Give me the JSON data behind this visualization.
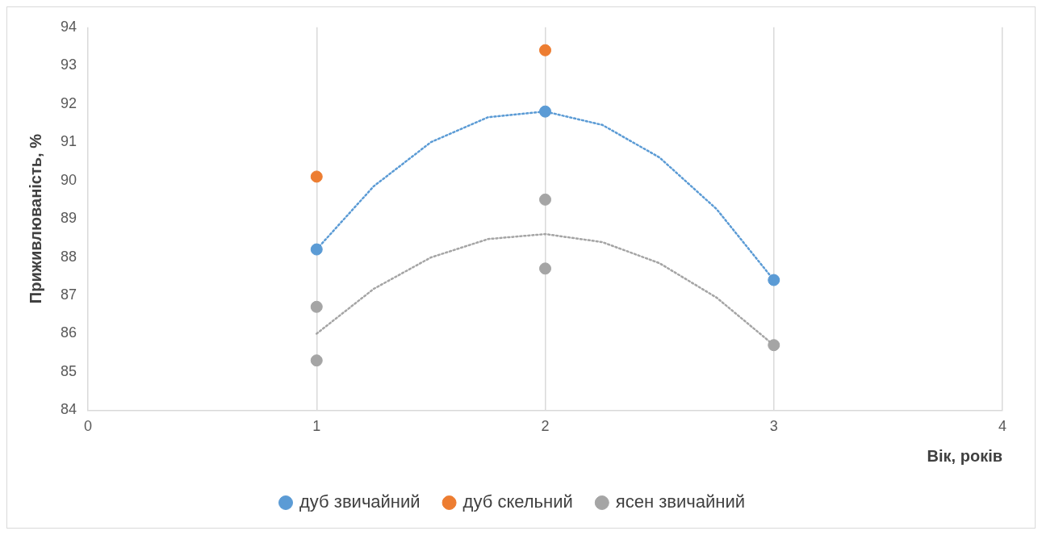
{
  "chart_data": {
    "type": "scatter",
    "xlabel": "Вік, років",
    "ylabel": "Приживлюваність, %",
    "xlim": [
      0,
      4
    ],
    "xticks": [
      0,
      1,
      2,
      3,
      4
    ],
    "ylim": [
      84,
      94
    ],
    "yticks": [
      84,
      85,
      86,
      87,
      88,
      89,
      90,
      91,
      92,
      93,
      94
    ],
    "grid": "x",
    "legend": "bottom",
    "marker": "circle",
    "series": [
      {
        "name": "дуб звичайний",
        "color": "#5b9bd5",
        "x": [
          1,
          2,
          3
        ],
        "values": [
          88.2,
          91.8,
          87.4
        ]
      },
      {
        "name": "дуб скельний",
        "color": "#ed7d31",
        "x": [
          1,
          2
        ],
        "values": [
          90.1,
          93.4
        ]
      },
      {
        "name": "ясен звичайний",
        "color": "#a5a5a5",
        "x": [
          1,
          1,
          2,
          2,
          3
        ],
        "values": [
          86.7,
          85.3,
          89.5,
          87.7,
          85.7
        ]
      },
      {
        "type": "line",
        "color": "#5b9bd5",
        "line_style": "dotted",
        "marker": "none",
        "x": [
          1,
          1.25,
          1.5,
          1.75,
          2,
          2.25,
          2.5,
          2.75,
          3
        ],
        "values": [
          88.2,
          89.85,
          91.0,
          91.65,
          91.8,
          91.45,
          90.6,
          89.25,
          87.4
        ]
      },
      {
        "type": "line",
        "color": "#a5a5a5",
        "line_style": "dotted",
        "marker": "none",
        "x": [
          1,
          1.25,
          1.5,
          1.75,
          2,
          2.25,
          2.5,
          2.75,
          3
        ],
        "values": [
          86.0,
          87.17,
          87.99,
          88.47,
          88.6,
          88.39,
          87.84,
          86.94,
          85.7
        ]
      }
    ]
  }
}
